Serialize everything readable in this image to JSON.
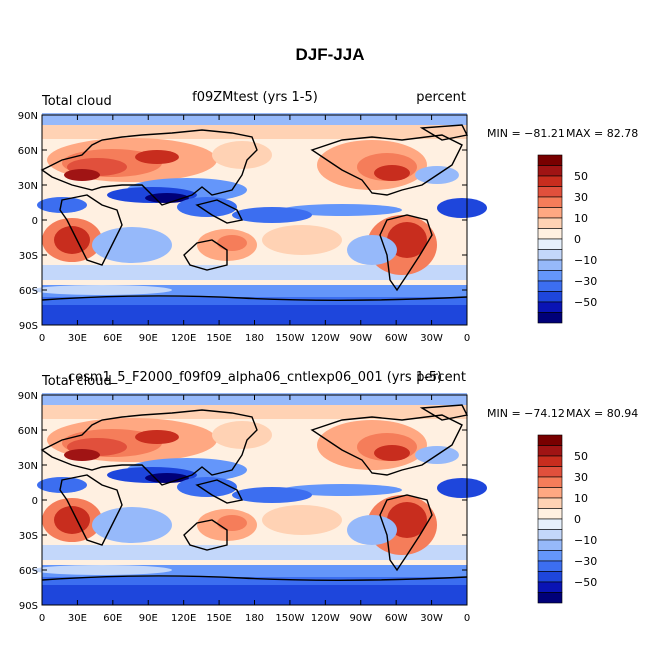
{
  "page_title": "DJF-JJA",
  "colorbar": {
    "colors": [
      "#000078",
      "#0a14b4",
      "#1e46dc",
      "#3c6ef0",
      "#6496fa",
      "#96b9fa",
      "#c3d7fa",
      "#e6f0fc",
      "#fff0e1",
      "#ffd2b4",
      "#ffa882",
      "#f57d5a",
      "#e1503c",
      "#c82d1e",
      "#a01414",
      "#780000"
    ],
    "labels": [
      "50",
      "30",
      "10",
      "0",
      "−10",
      "−30",
      "−50"
    ]
  },
  "axes": {
    "lat_ticks": [
      "90N",
      "60N",
      "30N",
      "0",
      "30S",
      "60S",
      "90S"
    ],
    "lon_ticks": [
      "0",
      "30E",
      "60E",
      "90E",
      "120E",
      "150E",
      "180",
      "150W",
      "120W",
      "90W",
      "60W",
      "30W",
      "0"
    ]
  },
  "chart_data": [
    {
      "type": "heatmap",
      "left_title": "Total cloud",
      "center_title": "f09ZMtest (yrs 1-5)",
      "right_title": "percent",
      "min_label": "MIN = −81.21",
      "max_label": "MAX =  82.78",
      "min": -81.21,
      "max": 82.78
    },
    {
      "type": "heatmap",
      "left_title": "Total cloud",
      "center_title": "cesm1_5_F2000_f09f09_alpha06_cntlexp06_001 (yrs 1-5)",
      "right_title": "percent",
      "min_label": "MIN = −74.12",
      "max_label": "MAX =  80.94",
      "min": -74.12,
      "max": 80.94
    }
  ]
}
